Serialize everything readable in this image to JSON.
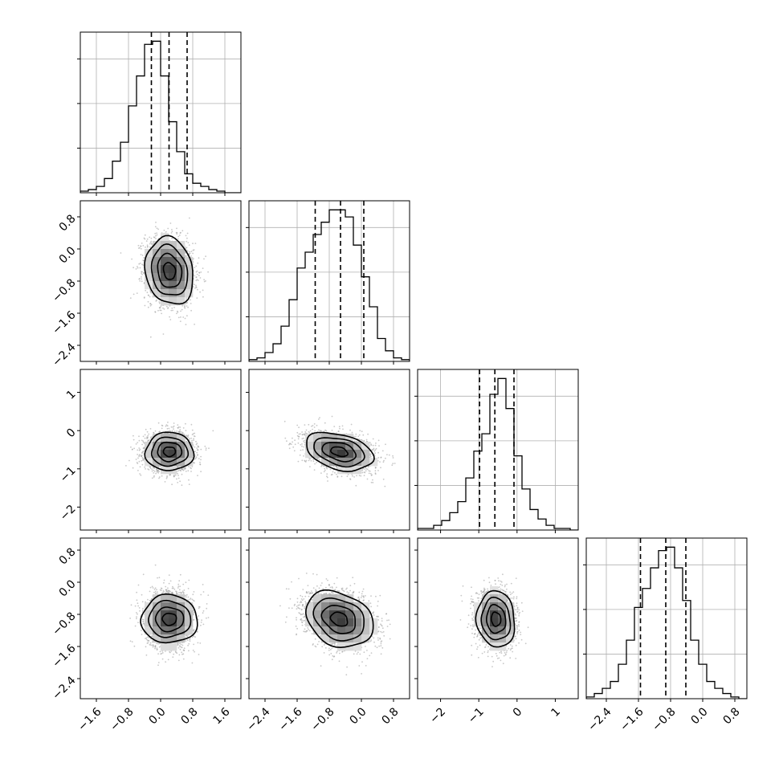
{
  "chart_data": {
    "type": "corner",
    "title": "",
    "parameters": [
      {
        "range": [
          -2.0,
          2.0
        ],
        "ticks": [
          -1.6,
          -0.8,
          0.0,
          0.8,
          1.6
        ],
        "tick_labels": [
          "−1.6",
          "−0.8",
          "0.0",
          "0.8",
          "1.6"
        ],
        "mean": 0.22,
        "sd": 0.3,
        "quantiles": [
          -0.23,
          0.21,
          0.66
        ],
        "hist_counts": [
          1,
          2,
          4,
          9,
          20,
          32,
          55,
          74,
          94,
          96,
          74,
          45,
          26,
          12,
          6,
          4,
          2,
          1,
          0,
          0
        ]
      },
      {
        "range": [
          -2.8,
          1.2
        ],
        "ticks": [
          -2.4,
          -1.6,
          -0.8,
          0.0,
          0.8
        ],
        "tick_labels": [
          "−2.4",
          "−1.6",
          "−0.8",
          "0.0",
          "0.8"
        ],
        "mean": -0.55,
        "sd": 0.42,
        "quantiles": [
          -1.15,
          -0.52,
          0.06
        ],
        "hist_counts": [
          1,
          2,
          5,
          10,
          20,
          35,
          53,
          62,
          72,
          79,
          86,
          86,
          82,
          66,
          48,
          31,
          13,
          6,
          2,
          1
        ]
      },
      {
        "range": [
          -2.6,
          1.6
        ],
        "ticks": [
          -2,
          -1,
          0,
          1
        ],
        "tick_labels": [
          "−2",
          "−1",
          "0",
          "1"
        ],
        "mean": -0.55,
        "sd": 0.25,
        "quantiles": [
          -0.98,
          -0.58,
          -0.08
        ],
        "hist_counts": [
          1,
          1,
          3,
          6,
          11,
          18,
          33,
          50,
          61,
          86,
          96,
          77,
          47,
          26,
          13,
          7,
          3,
          1,
          1,
          0
        ]
      },
      {
        "range": [
          -2.9,
          1.1
        ],
        "ticks": [
          -2.4,
          -1.6,
          -0.8,
          0.0,
          0.8
        ],
        "tick_labels": [
          "−2.4",
          "−1.6",
          "−0.8",
          "0.0",
          "0.8"
        ],
        "mean": -0.92,
        "sd": 0.35,
        "quantiles": [
          -1.55,
          -0.92,
          -0.42
        ],
        "hist_counts": [
          1,
          3,
          6,
          10,
          20,
          34,
          53,
          64,
          76,
          86,
          88,
          76,
          57,
          34,
          20,
          10,
          6,
          3,
          1,
          0
        ]
      }
    ],
    "correlations": {
      "1-0": -0.15,
      "2-0": 0.0,
      "2-1": -0.35,
      "3-0": 0.0,
      "3-1": -0.25,
      "3-2": -0.08
    },
    "contour_levels": [
      "0.5 sigma",
      "1 sigma",
      "1.5 sigma",
      "2 sigma"
    ],
    "grid": true,
    "colors": {
      "line": "#000000",
      "points": "#9a9a9a",
      "grid": "#b0b0b0"
    }
  }
}
